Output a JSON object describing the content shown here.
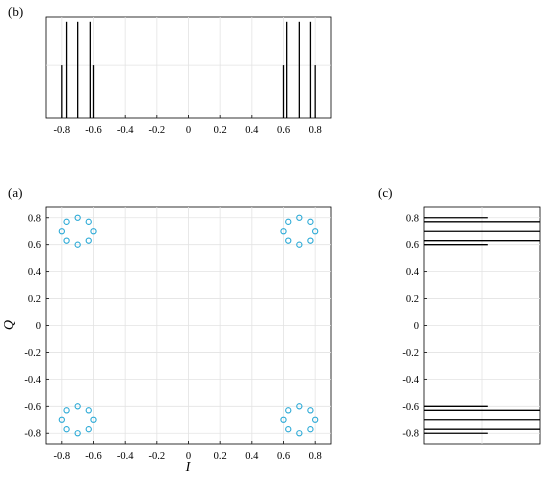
{
  "chart_data": [
    {
      "id": "b",
      "panel_label": "(b)",
      "type": "stem",
      "description_visible": "projection of constellation points onto I axis (stem lines)",
      "x": [
        -0.8,
        -0.7,
        -0.62,
        -0.6,
        0.6,
        0.62,
        0.7,
        0.8
      ],
      "values": [
        0.55,
        1.0,
        1.0,
        0.55,
        0.55,
        1.0,
        1.0,
        0.55
      ],
      "extra_stems": [
        {
          "x": -0.77,
          "value": 1.0
        },
        {
          "x": 0.77,
          "value": 1.0
        }
      ],
      "xlim": [
        -0.9,
        0.9
      ],
      "ylim": [
        0,
        1.05
      ],
      "xticks": [
        "-0.8",
        "-0.6",
        "-0.4",
        "-0.2",
        "0",
        "0.2",
        "0.4",
        "0.6",
        "0.8"
      ],
      "xtick_values": [
        -0.8,
        -0.6,
        -0.4,
        -0.2,
        0,
        0.2,
        0.4,
        0.6,
        0.8
      ],
      "grid": true,
      "color": "#000000"
    },
    {
      "id": "a",
      "panel_label": "(a)",
      "type": "scatter",
      "xlabel": "I",
      "ylabel": "Q",
      "xlim": [
        -0.9,
        0.9
      ],
      "ylim": [
        -0.88,
        0.88
      ],
      "xticks": [
        "-0.8",
        "-0.6",
        "-0.4",
        "-0.2",
        "0",
        "0.2",
        "0.4",
        "0.6",
        "0.8"
      ],
      "xtick_values": [
        -0.8,
        -0.6,
        -0.4,
        -0.2,
        0,
        0.2,
        0.4,
        0.6,
        0.8
      ],
      "yticks": [
        "0.8",
        "0.6",
        "0.4",
        "0.2",
        "0",
        "-0.2",
        "-0.4",
        "-0.6",
        "-0.8"
      ],
      "ytick_values": [
        0.8,
        0.6,
        0.4,
        0.2,
        0,
        -0.2,
        -0.4,
        -0.6,
        -0.8
      ],
      "grid": true,
      "marker_color": "#2aa9d6",
      "cluster_centers": [
        [
          -0.7,
          0.7
        ],
        [
          0.7,
          0.7
        ],
        [
          -0.7,
          -0.7
        ],
        [
          0.7,
          -0.7
        ]
      ],
      "cluster_offsets": [
        [
          0.0,
          0.1
        ],
        [
          0.07,
          0.07
        ],
        [
          0.1,
          0.0
        ],
        [
          0.07,
          -0.07
        ],
        [
          0.0,
          -0.1
        ],
        [
          -0.07,
          -0.07
        ],
        [
          -0.1,
          0.0
        ],
        [
          -0.07,
          0.07
        ]
      ]
    },
    {
      "id": "c",
      "panel_label": "(c)",
      "type": "horizontal-lines",
      "description_visible": "projection of constellation points onto Q axis",
      "ylim": [
        -0.88,
        0.88
      ],
      "xlim": [
        0,
        1
      ],
      "yticks": [
        "0.8",
        "0.6",
        "0.4",
        "0.2",
        "0",
        "-0.2",
        "-0.4",
        "-0.6",
        "-0.8"
      ],
      "ytick_values": [
        0.8,
        0.6,
        0.4,
        0.2,
        0,
        -0.2,
        -0.4,
        -0.6,
        -0.8
      ],
      "lines": [
        {
          "y": 0.8,
          "length": 0.55
        },
        {
          "y": 0.77,
          "length": 1.0
        },
        {
          "y": 0.7,
          "length": 1.0
        },
        {
          "y": 0.63,
          "length": 1.0
        },
        {
          "y": 0.6,
          "length": 0.55
        },
        {
          "y": -0.6,
          "length": 0.55
        },
        {
          "y": -0.63,
          "length": 1.0
        },
        {
          "y": -0.7,
          "length": 1.0
        },
        {
          "y": -0.77,
          "length": 1.0
        },
        {
          "y": -0.8,
          "length": 0.55
        }
      ],
      "grid": true,
      "color": "#000000"
    }
  ]
}
